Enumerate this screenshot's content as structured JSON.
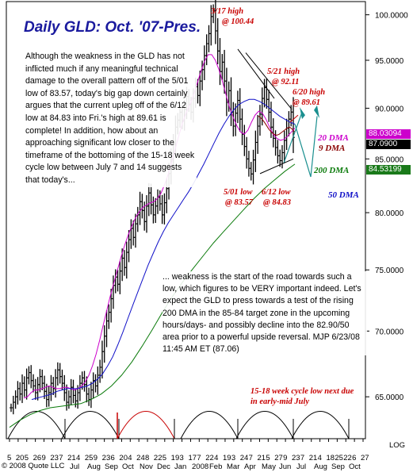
{
  "title": "Daily GLD: Oct. '07-Pres.",
  "commentary_top": "Although the weakness in the GLD has not inflicted much if any meaningful technical damage to the overall pattern off of the 5/01 low of 83.57, today's big gap down certainly argues that the current upleg off of the 6/12 low at 84.83 into Fri.'s high at 89.61 is complete! In addition, how about an approaching significant low closer to the timeframe of the bottoming of the 15-18 week cycle low between July 7 and 14 suggests that today's...",
  "commentary_bottom": "... weakness is the start of the road towards such a low, which figures to be VERY important indeed.  Let's expect the GLD to press towards a test of the rising 200 DMA in the 85-84 target zone in the upcoming hours/days- and possibly decline into the 82.90/50 area prior to a powerful upside reversal.  MJP  6/23/08  11:45 AM ET  (87.06)",
  "annotations": {
    "high_317_line1": "3/17 high",
    "high_317_line2": "@ 100.44",
    "high_521_line1": "5/21 high",
    "high_521_line2": "@ 92.11",
    "high_620_line1": "6/20 high",
    "high_620_line2": "@ 89.61",
    "low_501_line1": "5/01 low",
    "low_501_line2": "@ 83.57",
    "low_612_line1": "6/12 low",
    "low_612_line2": "@ 84.83",
    "cycle_note": "15-18 week cycle low next due in early-mid July"
  },
  "ma_labels": {
    "dma20": "20 DMA",
    "dma9": "9 DMA",
    "dma200": "200 DMA",
    "dma50": "50 DMA"
  },
  "price_flags": {
    "flag1": "88.03094",
    "flag2": "87.0900",
    "flag3": "84.53199"
  },
  "footer": "© 2008 Quote LLC",
  "log_label": "LOG",
  "colors": {
    "title": "#1a1a9e",
    "annotation_red": "#c80000",
    "dma20": "#cc00cc",
    "dma9": "#8b0000",
    "dma200": "#0a7a0a",
    "dma50": "#1010c8",
    "flag_magenta": "#cc00cc",
    "flag_black": "#000000",
    "flag_green": "#1a7a1a",
    "projection": "#1a8f8f"
  },
  "chart_data": {
    "type": "line",
    "scale": "log",
    "ylim": [
      62,
      101.5
    ],
    "yticks": [
      100,
      95,
      90,
      85,
      80,
      75,
      70,
      65
    ],
    "ytick_labels": [
      "100.0000",
      "95.0000",
      "90.0000",
      "85.0000",
      "80.0000",
      "75.0000",
      "70.0000",
      "65.0000"
    ],
    "xtick_labels": [
      "5",
      "20",
      "5",
      "26",
      "9",
      "23",
      "7",
      "21",
      "4",
      "25",
      "9",
      "23",
      "6",
      "20",
      "4",
      "24",
      "8",
      "22",
      "5",
      "19",
      "3",
      "17",
      "7",
      "22",
      "4",
      "19",
      "3",
      "24",
      "7",
      "21",
      "5",
      "27",
      "9",
      "23",
      "7",
      "21",
      "4",
      "18",
      "25",
      "22",
      "6",
      "27"
    ],
    "month_labels": [
      "Jul",
      "Aug",
      "Sep",
      "Oct",
      "Nov",
      "Dec",
      "Jan",
      "2008",
      "Feb",
      "Mar",
      "Apr",
      "May",
      "Jun",
      "Jul",
      "Aug",
      "Sep",
      "Oct"
    ],
    "last_date": "2008-06-23",
    "last_value": 87.09,
    "series": [
      {
        "name": "GLD",
        "style": "ohlc",
        "values": [
          64.2,
          64.6,
          65.0,
          65.6,
          65.2,
          66.0,
          65.5,
          66.4,
          66.8,
          66.2,
          65.8,
          65.3,
          65.9,
          66.5,
          66.0,
          65.4,
          64.8,
          65.3,
          66.0,
          65.6,
          66.4,
          67.0,
          66.5,
          66.0,
          65.3,
          64.6,
          65.0,
          65.7,
          65.1,
          64.7,
          65.3,
          66.0,
          66.4,
          65.9,
          65.2,
          64.8,
          65.5,
          66.2,
          65.8,
          66.6,
          67.2,
          68.4,
          69.6,
          70.8,
          71.5,
          72.6,
          73.7,
          74.4,
          73.8,
          74.9,
          76.0,
          75.2,
          76.5,
          77.6,
          78.6,
          77.8,
          79.0,
          79.8,
          81.0,
          80.2,
          79.2,
          80.6,
          81.8,
          80.7,
          79.8,
          80.6,
          81.4,
          80.8,
          79.8,
          80.9,
          82.2,
          83.6,
          85.0,
          86.4,
          88.1,
          88.8,
          89.6,
          88.7,
          89.9,
          91.2,
          90.4,
          89.6,
          91.0,
          92.2,
          91.3,
          92.8,
          94.0,
          95.5,
          96.8,
          97.9,
          99.8,
          100.44,
          98.2,
          96.0,
          93.8,
          94.8,
          92.8,
          90.6,
          91.8,
          89.6,
          88.2,
          89.5,
          90.8,
          88.9,
          87.4,
          86.2,
          85.0,
          84.1,
          83.57,
          84.9,
          86.6,
          88.2,
          89.4,
          91.0,
          92.11,
          90.9,
          89.6,
          88.1,
          87.0,
          86.1,
          85.3,
          84.83,
          85.6,
          86.8,
          88.0,
          88.9,
          89.61,
          87.09
        ]
      },
      {
        "name": "20 DMA",
        "values": [
          64.9,
          65.0,
          65.3,
          65.5,
          65.5,
          65.6,
          65.7,
          65.8,
          65.7,
          65.6,
          65.6,
          65.7,
          65.7,
          65.6,
          65.5,
          65.6,
          65.8,
          66.1,
          66.6,
          67.3,
          68.2,
          69.3,
          70.5,
          71.7,
          72.9,
          74.0,
          75.1,
          76.2,
          77.2,
          78.1,
          78.9,
          79.6,
          80.1,
          80.5,
          80.7,
          80.9,
          81.0,
          81.3,
          81.8,
          82.6,
          83.6,
          84.8,
          86.1,
          87.4,
          88.6,
          89.6,
          90.4,
          91.4,
          92.6,
          93.8,
          94.9,
          95.6,
          95.6,
          95.0,
          94.0,
          92.7,
          91.3,
          90.0,
          89.0,
          88.2,
          87.6,
          87.4,
          87.8,
          88.6,
          89.3,
          89.7,
          89.5,
          88.9,
          88.1,
          87.4,
          87.0,
          86.8,
          86.9,
          87.2,
          87.6,
          88.0
        ]
      },
      {
        "name": "9 DMA",
        "values": [
          89.2,
          89.0,
          88.7,
          88.3,
          87.9,
          87.6,
          87.4,
          87.3,
          87.4,
          87.6,
          87.8,
          88.0,
          88.1,
          87.9,
          87.6
        ]
      },
      {
        "name": "50 DMA",
        "values": [
          64.8,
          64.9,
          65.0,
          65.1,
          65.2,
          65.4,
          65.5,
          65.6,
          65.6,
          65.6,
          65.7,
          65.8,
          66.0,
          66.3,
          66.7,
          67.3,
          68.0,
          68.9,
          69.9,
          71.0,
          72.1,
          73.2,
          74.3,
          75.4,
          76.4,
          77.4,
          78.3,
          79.1,
          79.8,
          80.5,
          81.2,
          81.9,
          82.7,
          83.6,
          84.5,
          85.5,
          86.5,
          87.5,
          88.4,
          89.2,
          89.9,
          90.4,
          90.7,
          90.9,
          90.9,
          90.7,
          90.4,
          90.0,
          89.6,
          89.2,
          88.9,
          88.6,
          88.4
        ]
      },
      {
        "name": "200 DMA",
        "values": [
          62.8,
          63.3,
          63.7,
          64.0,
          64.2,
          64.3,
          64.4,
          64.5,
          64.8,
          65.2,
          65.8,
          66.6,
          67.6,
          68.8,
          70.1,
          71.5,
          72.8,
          74.0,
          75.1,
          76.2,
          77.3,
          78.3,
          79.3,
          80.3,
          81.3,
          82.2,
          83.0,
          83.8,
          84.5
        ]
      }
    ]
  }
}
